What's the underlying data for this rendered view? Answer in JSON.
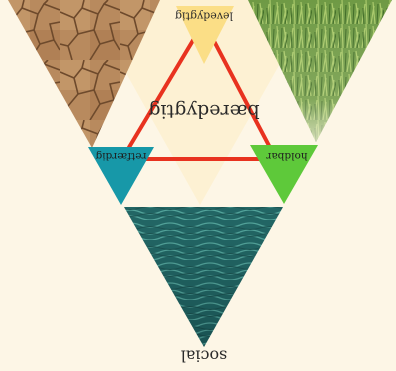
{
  "diagram": {
    "center_label": "bæredygtig",
    "vertices": {
      "top": "levedygtig",
      "left": "retfærdig",
      "right": "holdbar"
    },
    "bottom_label": "social",
    "colors": {
      "background": "#fdf6e6",
      "inner_panel": "#fdf1d3",
      "top_marker": "#fbde86",
      "left_marker": "#1798a8",
      "right_marker": "#5ec93a",
      "connector": "#e8321f"
    },
    "panels": {
      "left": "cracked dry earth",
      "right": "green grass",
      "bottom": "teal water"
    },
    "orientation": "rotated 180 degrees"
  }
}
